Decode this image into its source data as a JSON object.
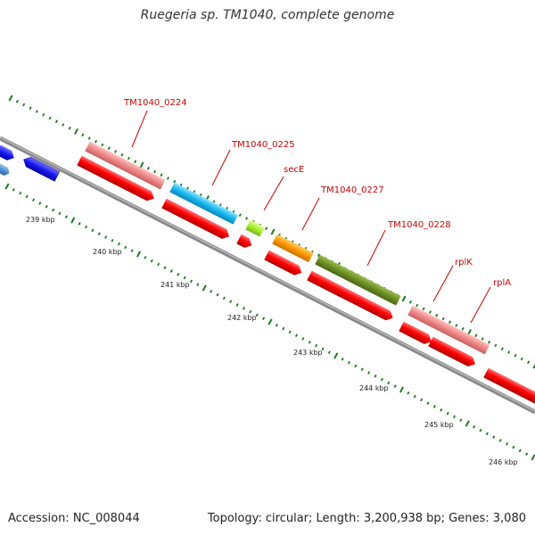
{
  "title": "Ruegeria sp. TM1040, complete genome",
  "footer": {
    "accession": "Accession: NC_008044",
    "summary": "Topology: circular; Length: 3,200,938 bp; Genes: 3,080"
  },
  "colors": {
    "backbone": "#8a8a8a",
    "tick": "#1e7a1e",
    "gene_label": "#cc0000",
    "cds": "#ff0000",
    "blue": "#1a1aee",
    "steel": "#4f8fcf",
    "pink": "#ee8888",
    "cyan": "#18b8ee",
    "lime": "#a8ee30",
    "orange": "#ff9900",
    "olive": "#6b8e23"
  },
  "scale_labels": [
    "239 kbp",
    "240 kbp",
    "241 kbp",
    "242 kbp",
    "243 kbp",
    "244 kbp",
    "245 kbp",
    "246 kbp"
  ],
  "gene_labels": [
    "TM1040_0224",
    "TM1040_0225",
    "secE",
    "TM1040_0227",
    "TM1040_0228",
    "rplK",
    "rplA"
  ]
}
